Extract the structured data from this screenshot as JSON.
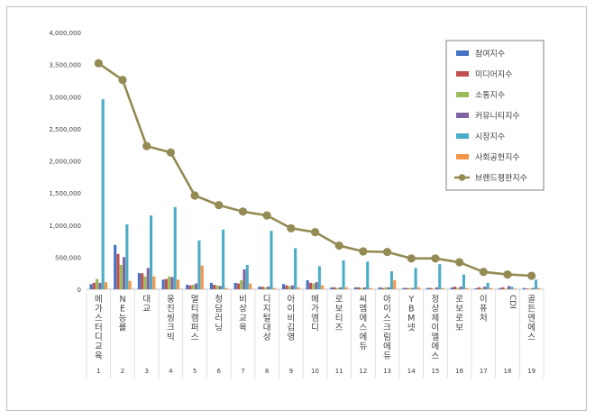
{
  "chart_data": {
    "type": "bar",
    "title": "",
    "xlabel": "",
    "ylabel": "",
    "ylim": [
      0,
      4000000
    ],
    "ytick_step": 500000,
    "y_tick_labels": [
      "0",
      "500,000",
      "1,000,000",
      "1,500,000",
      "2,000,000",
      "2,500,000",
      "3,000,000",
      "3,500,000",
      "4,000,000"
    ],
    "ranks": [
      "1",
      "2",
      "3",
      "4",
      "5",
      "6",
      "7",
      "8",
      "9",
      "10",
      "11",
      "12",
      "13",
      "14",
      "15",
      "16",
      "17",
      "18",
      "19"
    ],
    "categories": [
      "메가스터디교육",
      "NE능률",
      "대교",
      "웅진씽크빅",
      "멀티캠퍼스",
      "청담러닝",
      "비상교육",
      "디지털대성",
      "아이비김영",
      "메가엠디",
      "로보티즈",
      "씨엠에스에듀",
      "아이스크림에듀",
      "YBM넷",
      "정상제이엘에스",
      "로보로보",
      "이퓨처",
      "CDI",
      "골든엔에스"
    ],
    "series": [
      {
        "name": "참여지수",
        "color": "#4472c4",
        "kind": "bar",
        "values": [
          80000,
          690000,
          250000,
          150000,
          70000,
          100000,
          100000,
          40000,
          80000,
          140000,
          30000,
          30000,
          30000,
          20000,
          20000,
          30000,
          15000,
          20000,
          20000
        ]
      },
      {
        "name": "미디어지수",
        "color": "#c0504d",
        "kind": "bar",
        "values": [
          100000,
          550000,
          250000,
          160000,
          60000,
          70000,
          90000,
          40000,
          60000,
          100000,
          30000,
          30000,
          20000,
          20000,
          20000,
          40000,
          30000,
          30000,
          10000
        ]
      },
      {
        "name": "소통지수",
        "color": "#9bbb59",
        "kind": "bar",
        "values": [
          160000,
          380000,
          200000,
          200000,
          70000,
          60000,
          140000,
          30000,
          50000,
          90000,
          20000,
          20000,
          30000,
          20000,
          10000,
          20000,
          20000,
          10000,
          10000
        ]
      },
      {
        "name": "커뮤니티지수",
        "color": "#8064a2",
        "kind": "bar",
        "values": [
          100000,
          500000,
          330000,
          190000,
          90000,
          50000,
          310000,
          40000,
          60000,
          110000,
          30000,
          30000,
          30000,
          20000,
          30000,
          40000,
          40000,
          50000,
          20000
        ]
      },
      {
        "name": "시장지수",
        "color": "#4bacc6",
        "kind": "bar",
        "values": [
          2960000,
          1010000,
          1150000,
          1280000,
          760000,
          930000,
          380000,
          910000,
          640000,
          360000,
          450000,
          430000,
          280000,
          330000,
          390000,
          230000,
          100000,
          40000,
          150000
        ]
      },
      {
        "name": "사회공헌지수",
        "color": "#f79646",
        "kind": "bar",
        "values": [
          110000,
          130000,
          200000,
          150000,
          370000,
          20000,
          90000,
          20000,
          30000,
          60000,
          30000,
          20000,
          140000,
          30000,
          20000,
          20000,
          20000,
          10000,
          20000
        ]
      },
      {
        "name": "브랜드평판지수",
        "color": "#948a54",
        "kind": "line",
        "values": [
          3520000,
          3260000,
          2230000,
          2130000,
          1460000,
          1310000,
          1210000,
          1150000,
          950000,
          890000,
          680000,
          590000,
          580000,
          480000,
          480000,
          420000,
          270000,
          230000,
          210000
        ]
      }
    ],
    "legend_position": "top-right",
    "grid": false
  }
}
